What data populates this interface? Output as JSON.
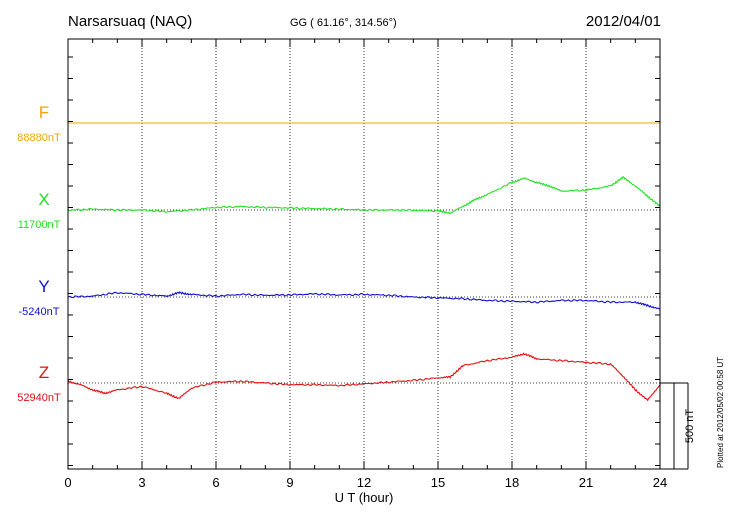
{
  "header": {
    "station": "Narsarsuaq (NAQ)",
    "coords": "GG ( 61.16°, 314.56°)",
    "date": "2012/04/01"
  },
  "footer": {
    "plotted": "Plotted at 2012/05/02 00:58 UT"
  },
  "colors": {
    "F": "#f0a800",
    "X": "#22e022",
    "Y": "#1010d0",
    "Z": "#e01010"
  },
  "chart_data": {
    "type": "line",
    "xlabel": "U T (hour)",
    "xlim": [
      0,
      24
    ],
    "xticks": [
      "0",
      "3",
      "6",
      "9",
      "12",
      "15",
      "18",
      "21",
      "24"
    ],
    "grid": true,
    "scale_bar": {
      "label": "500 nT",
      "value_nT": 500
    },
    "series": [
      {
        "name": "F",
        "baseline_label": "88880nT",
        "baseline_nT": 88880,
        "x": [
          0,
          24
        ],
        "values": [
          88880,
          88880
        ]
      },
      {
        "name": "X",
        "baseline_label": "11700nT",
        "baseline_nT": 11700,
        "x": [
          0,
          1,
          2,
          3,
          4,
          5,
          6,
          7,
          8,
          9,
          10,
          11,
          12,
          13,
          14,
          15,
          15.5,
          16,
          16.5,
          17,
          18,
          18.5,
          19,
          19.5,
          20,
          21,
          22,
          22.5,
          23,
          23.5,
          24
        ],
        "values": [
          11698,
          11705,
          11700,
          11700,
          11690,
          11700,
          11715,
          11720,
          11715,
          11712,
          11708,
          11705,
          11700,
          11700,
          11698,
          11695,
          11682,
          11720,
          11760,
          11790,
          11860,
          11885,
          11860,
          11840,
          11810,
          11815,
          11840,
          11890,
          11840,
          11780,
          11720
        ]
      },
      {
        "name": "Y",
        "baseline_label": "-5240nT",
        "baseline_nT": -5240,
        "x": [
          0,
          1,
          2,
          3,
          4,
          4.5,
          5,
          6,
          7,
          8,
          9,
          10,
          11,
          12,
          13,
          14,
          15,
          16,
          17,
          18,
          19,
          20,
          21,
          22,
          23,
          23.5,
          24
        ],
        "values": [
          -5240,
          -5235,
          -5215,
          -5225,
          -5235,
          -5215,
          -5225,
          -5235,
          -5225,
          -5230,
          -5228,
          -5222,
          -5228,
          -5225,
          -5230,
          -5240,
          -5245,
          -5250,
          -5260,
          -5265,
          -5270,
          -5260,
          -5260,
          -5270,
          -5270,
          -5290,
          -5310
        ]
      },
      {
        "name": "Z",
        "baseline_label": "52940nT",
        "baseline_nT": 52940,
        "x": [
          0,
          0.5,
          1,
          1.5,
          2,
          3,
          4,
          4.5,
          5,
          6,
          7,
          8,
          9,
          10,
          11,
          12,
          13,
          14,
          15,
          15.5,
          16,
          17,
          18,
          18.5,
          19,
          20,
          21,
          22,
          22.5,
          23,
          23.5,
          24
        ],
        "values": [
          52950,
          52930,
          52900,
          52880,
          52900,
          52920,
          52880,
          52850,
          52910,
          52945,
          52950,
          52940,
          52930,
          52930,
          52925,
          52935,
          52945,
          52955,
          52970,
          52975,
          53040,
          53070,
          53090,
          53110,
          53080,
          53070,
          53060,
          53050,
          52980,
          52900,
          52840,
          52930
        ]
      }
    ]
  }
}
